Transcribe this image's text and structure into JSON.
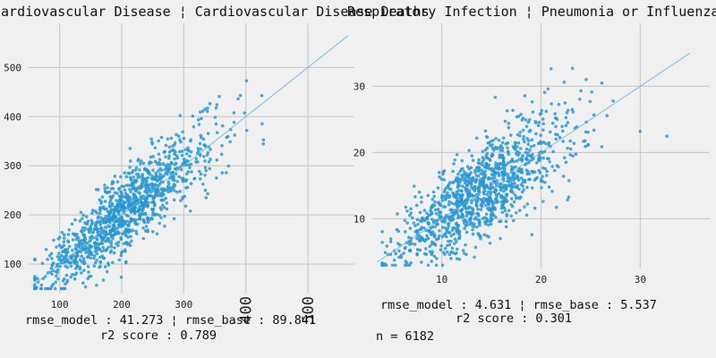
{
  "chart_data": [
    {
      "type": "scatter",
      "title": "Cardiovascular Disease ¦ Cardiovascular Disease Deaths",
      "xlabel": "",
      "ylabel": "",
      "xlim": [
        50,
        575
      ],
      "ylim": [
        40,
        590
      ],
      "x_ticks": [
        100,
        200,
        300,
        400,
        500
      ],
      "x_tick_labels": [
        "100",
        "200",
        "300",
        "400",
        "500"
      ],
      "rotated_x_tick_labels": [
        "400",
        "500"
      ],
      "y_ticks": [
        100,
        200,
        300,
        400,
        500
      ],
      "y_tick_labels": [
        "100",
        "200",
        "300",
        "400",
        "500"
      ],
      "grid": true,
      "identity_line": {
        "from": [
          55,
          55
        ],
        "to": [
          565,
          565
        ]
      },
      "point_color": "#2b9fd9",
      "line_color": "#6ab9e6",
      "estimated_point_count": 1150,
      "distribution": {
        "x_range": [
          60,
          530
        ],
        "y_range": [
          50,
          570
        ],
        "trend": "y ≈ x, strong positive correlation"
      },
      "annotations": [
        "rmse_model : 41.273 ¦ rmse_base : 89.841",
        "r2 score : 0.789"
      ]
    },
    {
      "type": "scatter",
      "title": "Respiratory Infection ¦ Pneumonia or Influenza Deaths",
      "xlabel": "",
      "ylabel": "",
      "xlim": [
        3,
        37
      ],
      "ylim": [
        2.5,
        39.5
      ],
      "x_ticks": [
        10,
        20,
        30
      ],
      "x_tick_labels": [
        "10",
        "20",
        "30"
      ],
      "y_ticks": [
        10,
        20,
        30
      ],
      "y_tick_labels": [
        "10",
        "20",
        "30"
      ],
      "grid": true,
      "identity_line": {
        "from": [
          3.5,
          3.5
        ],
        "to": [
          35,
          35
        ]
      },
      "point_color": "#2b9fd9",
      "line_color": "#6ab9e6",
      "estimated_point_count": 1150,
      "distribution": {
        "x_range": [
          4,
          35
        ],
        "y_range": [
          3,
          38
        ],
        "trend": "y ≈ x, positive correlation"
      },
      "annotations": [
        "rmse_model : 4.631 ¦ rmse_base : 5.537",
        "r2 score : 0.301"
      ]
    }
  ],
  "footer": {
    "n_label": "n = 6182"
  },
  "colors": {
    "background": "#f0f0f0",
    "grid": "#cbcbcb",
    "points": "#2b9fd9"
  }
}
